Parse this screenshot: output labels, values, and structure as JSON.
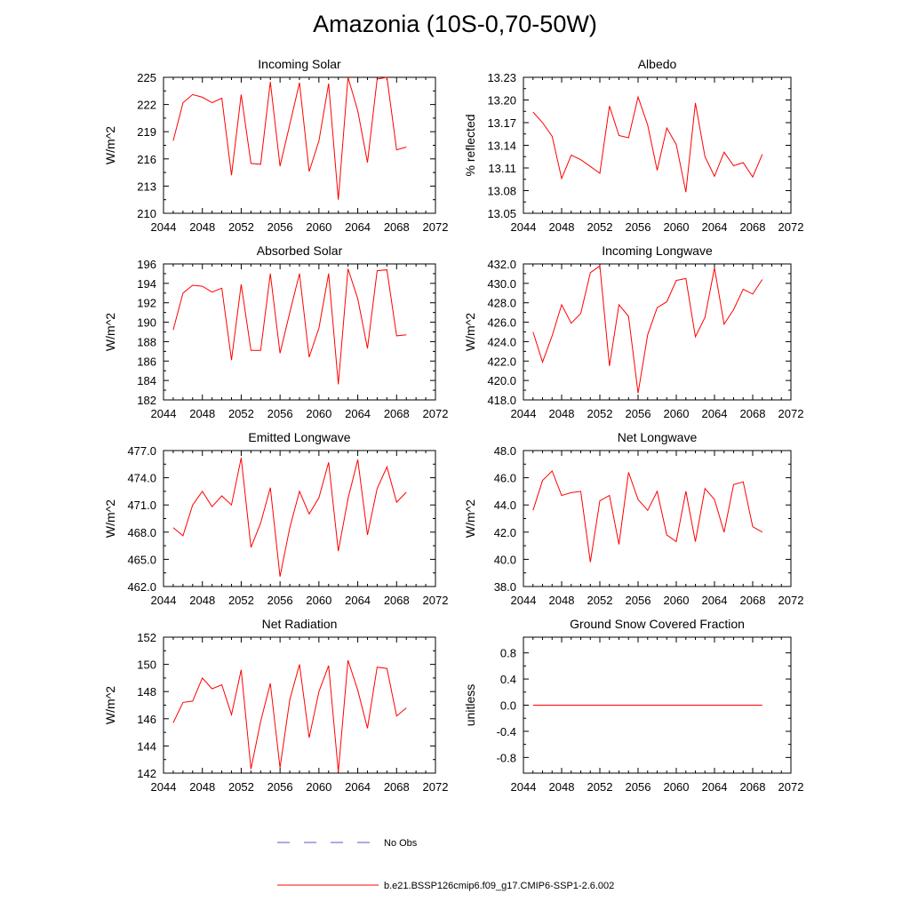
{
  "title": "Amazonia (10S-0,70-50W)",
  "colors": {
    "model": "#ff0000",
    "obs": "#5555cc",
    "axis": "#000000"
  },
  "legend": [
    {
      "label": "No Obs",
      "style": "dashed",
      "color": "#5555cc"
    },
    {
      "label": "b.e21.BSSP126cmip6.f09_g17.CMIP6-SSP1-2.6.002",
      "style": "solid",
      "color": "#ff0000"
    }
  ],
  "chart_data": [
    {
      "type": "line",
      "title": "Incoming Solar",
      "ylabel": "W/m^2",
      "xlabel": "",
      "xlim": [
        2044,
        2072
      ],
      "xticks": [
        2044,
        2048,
        2052,
        2056,
        2060,
        2064,
        2068,
        2072
      ],
      "ylim": [
        210,
        225
      ],
      "yticks": [
        "210",
        "213",
        "216",
        "219",
        "222",
        "225"
      ],
      "x": [
        2045,
        2046,
        2047,
        2048,
        2049,
        2050,
        2051,
        2052,
        2053,
        2054,
        2055,
        2056,
        2057,
        2058,
        2059,
        2060,
        2061,
        2062,
        2063,
        2064,
        2065,
        2066,
        2067,
        2068,
        2069
      ],
      "series": [
        {
          "name": "b.e21.BSSP126cmip6.f09_g17.CMIP6-SSP1-2.6.002",
          "values": [
            218.0,
            222.2,
            223.1,
            222.8,
            222.2,
            222.7,
            214.2,
            223.1,
            215.5,
            215.4,
            224.5,
            215.2,
            219.8,
            224.4,
            214.6,
            218.0,
            224.3,
            211.5,
            225.0,
            221.3,
            215.6,
            224.8,
            225.0,
            217.0,
            217.3
          ]
        }
      ]
    },
    {
      "type": "line",
      "title": "Albedo",
      "ylabel": "% reflected",
      "xlabel": "",
      "xlim": [
        2044,
        2072
      ],
      "xticks": [
        2044,
        2048,
        2052,
        2056,
        2060,
        2064,
        2068,
        2072
      ],
      "ylim": [
        13.05,
        13.23
      ],
      "yticks": [
        "13.05",
        "13.08",
        "13.11",
        "13.14",
        "13.17",
        "13.20",
        "13.23"
      ],
      "x": [
        2045,
        2046,
        2047,
        2048,
        2049,
        2050,
        2051,
        2052,
        2053,
        2054,
        2055,
        2056,
        2057,
        2058,
        2059,
        2060,
        2061,
        2062,
        2063,
        2064,
        2065,
        2066,
        2067,
        2068,
        2069
      ],
      "series": [
        {
          "name": "b.e21.BSSP126cmip6.f09_g17.CMIP6-SSP1-2.6.002",
          "values": [
            13.184,
            13.17,
            13.152,
            13.096,
            13.127,
            13.121,
            13.112,
            13.103,
            13.192,
            13.153,
            13.15,
            13.204,
            13.167,
            13.107,
            13.163,
            13.141,
            13.078,
            13.196,
            13.125,
            13.099,
            13.131,
            13.113,
            13.117,
            13.098,
            13.128
          ]
        }
      ]
    },
    {
      "type": "line",
      "title": "Absorbed Solar",
      "ylabel": "W/m^2",
      "xlabel": "",
      "xlim": [
        2044,
        2072
      ],
      "xticks": [
        2044,
        2048,
        2052,
        2056,
        2060,
        2064,
        2068,
        2072
      ],
      "ylim": [
        182,
        196
      ],
      "yticks": [
        "182",
        "184",
        "186",
        "188",
        "190",
        "192",
        "194",
        "196"
      ],
      "x": [
        2045,
        2046,
        2047,
        2048,
        2049,
        2050,
        2051,
        2052,
        2053,
        2054,
        2055,
        2056,
        2057,
        2058,
        2059,
        2060,
        2061,
        2062,
        2063,
        2064,
        2065,
        2066,
        2067,
        2068,
        2069
      ],
      "series": [
        {
          "name": "b.e21.BSSP126cmip6.f09_g17.CMIP6-SSP1-2.6.002",
          "values": [
            189.2,
            193.0,
            193.8,
            193.7,
            193.1,
            193.5,
            186.1,
            193.9,
            187.1,
            187.1,
            195.0,
            186.8,
            191.0,
            195.0,
            186.4,
            189.4,
            195.0,
            183.6,
            195.5,
            192.4,
            187.3,
            195.3,
            195.4,
            188.6,
            188.7
          ]
        }
      ]
    },
    {
      "type": "line",
      "title": "Incoming Longwave",
      "ylabel": "W/m^2",
      "xlabel": "",
      "xlim": [
        2044,
        2072
      ],
      "xticks": [
        2044,
        2048,
        2052,
        2056,
        2060,
        2064,
        2068,
        2072
      ],
      "ylim": [
        418.0,
        432.0
      ],
      "yticks": [
        "418.0",
        "420.0",
        "422.0",
        "424.0",
        "426.0",
        "428.0",
        "430.0",
        "432.0"
      ],
      "x": [
        2045,
        2046,
        2047,
        2048,
        2049,
        2050,
        2051,
        2052,
        2053,
        2054,
        2055,
        2056,
        2057,
        2058,
        2059,
        2060,
        2061,
        2062,
        2063,
        2064,
        2065,
        2066,
        2067,
        2068,
        2069
      ],
      "series": [
        {
          "name": "b.e21.BSSP126cmip6.f09_g17.CMIP6-SSP1-2.6.002",
          "values": [
            425.0,
            421.9,
            424.6,
            427.8,
            425.9,
            426.9,
            431.1,
            431.8,
            421.5,
            427.8,
            426.6,
            418.7,
            424.7,
            427.5,
            428.1,
            430.3,
            430.5,
            424.5,
            426.5,
            431.6,
            425.8,
            427.3,
            429.4,
            428.9,
            430.4
          ]
        }
      ]
    },
    {
      "type": "line",
      "title": "Emitted Longwave",
      "ylabel": "W/m^2",
      "xlabel": "",
      "xlim": [
        2044,
        2072
      ],
      "xticks": [
        2044,
        2048,
        2052,
        2056,
        2060,
        2064,
        2068,
        2072
      ],
      "ylim": [
        462.0,
        477.0
      ],
      "yticks": [
        "462.0",
        "465.0",
        "468.0",
        "471.0",
        "474.0",
        "477.0"
      ],
      "x": [
        2045,
        2046,
        2047,
        2048,
        2049,
        2050,
        2051,
        2052,
        2053,
        2054,
        2055,
        2056,
        2057,
        2058,
        2059,
        2060,
        2061,
        2062,
        2063,
        2064,
        2065,
        2066,
        2067,
        2068,
        2069
      ],
      "series": [
        {
          "name": "b.e21.BSSP126cmip6.f09_g17.CMIP6-SSP1-2.6.002",
          "values": [
            468.5,
            467.6,
            471.0,
            472.5,
            470.8,
            472.0,
            471.0,
            476.2,
            466.3,
            469.0,
            472.9,
            463.1,
            468.5,
            472.5,
            470.0,
            471.8,
            475.7,
            465.9,
            471.7,
            476.0,
            467.7,
            472.8,
            475.2,
            471.3,
            472.4
          ]
        }
      ]
    },
    {
      "type": "line",
      "title": "Net Longwave",
      "ylabel": "W/m^2",
      "xlabel": "",
      "xlim": [
        2044,
        2072
      ],
      "xticks": [
        2044,
        2048,
        2052,
        2056,
        2060,
        2064,
        2068,
        2072
      ],
      "ylim": [
        38.0,
        48.0
      ],
      "yticks": [
        "38.0",
        "40.0",
        "42.0",
        "44.0",
        "46.0",
        "48.0"
      ],
      "x": [
        2045,
        2046,
        2047,
        2048,
        2049,
        2050,
        2051,
        2052,
        2053,
        2054,
        2055,
        2056,
        2057,
        2058,
        2059,
        2060,
        2061,
        2062,
        2063,
        2064,
        2065,
        2066,
        2067,
        2068,
        2069
      ],
      "series": [
        {
          "name": "b.e21.BSSP126cmip6.f09_g17.CMIP6-SSP1-2.6.002",
          "values": [
            43.6,
            45.8,
            46.5,
            44.7,
            44.9,
            45.0,
            39.8,
            44.3,
            44.7,
            41.1,
            46.4,
            44.4,
            43.6,
            45.0,
            41.8,
            41.3,
            45.0,
            41.3,
            45.2,
            44.4,
            42.0,
            45.5,
            45.7,
            42.4,
            42.0
          ]
        }
      ]
    },
    {
      "type": "line",
      "title": "Net Radiation",
      "ylabel": "W/m^2",
      "xlabel": "",
      "xlim": [
        2044,
        2072
      ],
      "xticks": [
        2044,
        2048,
        2052,
        2056,
        2060,
        2064,
        2068,
        2072
      ],
      "ylim": [
        142,
        152
      ],
      "yticks": [
        "142",
        "144",
        "146",
        "148",
        "150",
        "152"
      ],
      "x": [
        2045,
        2046,
        2047,
        2048,
        2049,
        2050,
        2051,
        2052,
        2053,
        2054,
        2055,
        2056,
        2057,
        2058,
        2059,
        2060,
        2061,
        2062,
        2063,
        2064,
        2065,
        2066,
        2067,
        2068,
        2069
      ],
      "series": [
        {
          "name": "b.e21.BSSP126cmip6.f09_g17.CMIP6-SSP1-2.6.002",
          "values": [
            145.7,
            147.2,
            147.3,
            149.0,
            148.2,
            148.5,
            146.3,
            149.6,
            142.3,
            145.8,
            148.6,
            142.4,
            147.4,
            150.0,
            144.6,
            148.0,
            149.9,
            142.1,
            150.3,
            148.1,
            145.3,
            149.8,
            149.7,
            146.2,
            146.8
          ]
        }
      ]
    },
    {
      "type": "line",
      "title": "Ground Snow Covered Fraction",
      "ylabel": "unitless",
      "xlabel": "",
      "xlim": [
        2044,
        2072
      ],
      "xticks": [
        2044,
        2048,
        2052,
        2056,
        2060,
        2064,
        2068,
        2072
      ],
      "ylim": [
        -1.04,
        1.04
      ],
      "yticks": [
        "-0.8",
        "-0.4",
        "0.0",
        "0.4",
        "0.8"
      ],
      "ytick_values": [
        -0.8,
        -0.4,
        0.0,
        0.4,
        0.8
      ],
      "x": [
        2045,
        2046,
        2047,
        2048,
        2049,
        2050,
        2051,
        2052,
        2053,
        2054,
        2055,
        2056,
        2057,
        2058,
        2059,
        2060,
        2061,
        2062,
        2063,
        2064,
        2065,
        2066,
        2067,
        2068,
        2069
      ],
      "series": [
        {
          "name": "b.e21.BSSP126cmip6.f09_g17.CMIP6-SSP1-2.6.002",
          "values": [
            0,
            0,
            0,
            0,
            0,
            0,
            0,
            0,
            0,
            0,
            0,
            0,
            0,
            0,
            0,
            0,
            0,
            0,
            0,
            0,
            0,
            0,
            0,
            0,
            0
          ]
        }
      ]
    }
  ]
}
